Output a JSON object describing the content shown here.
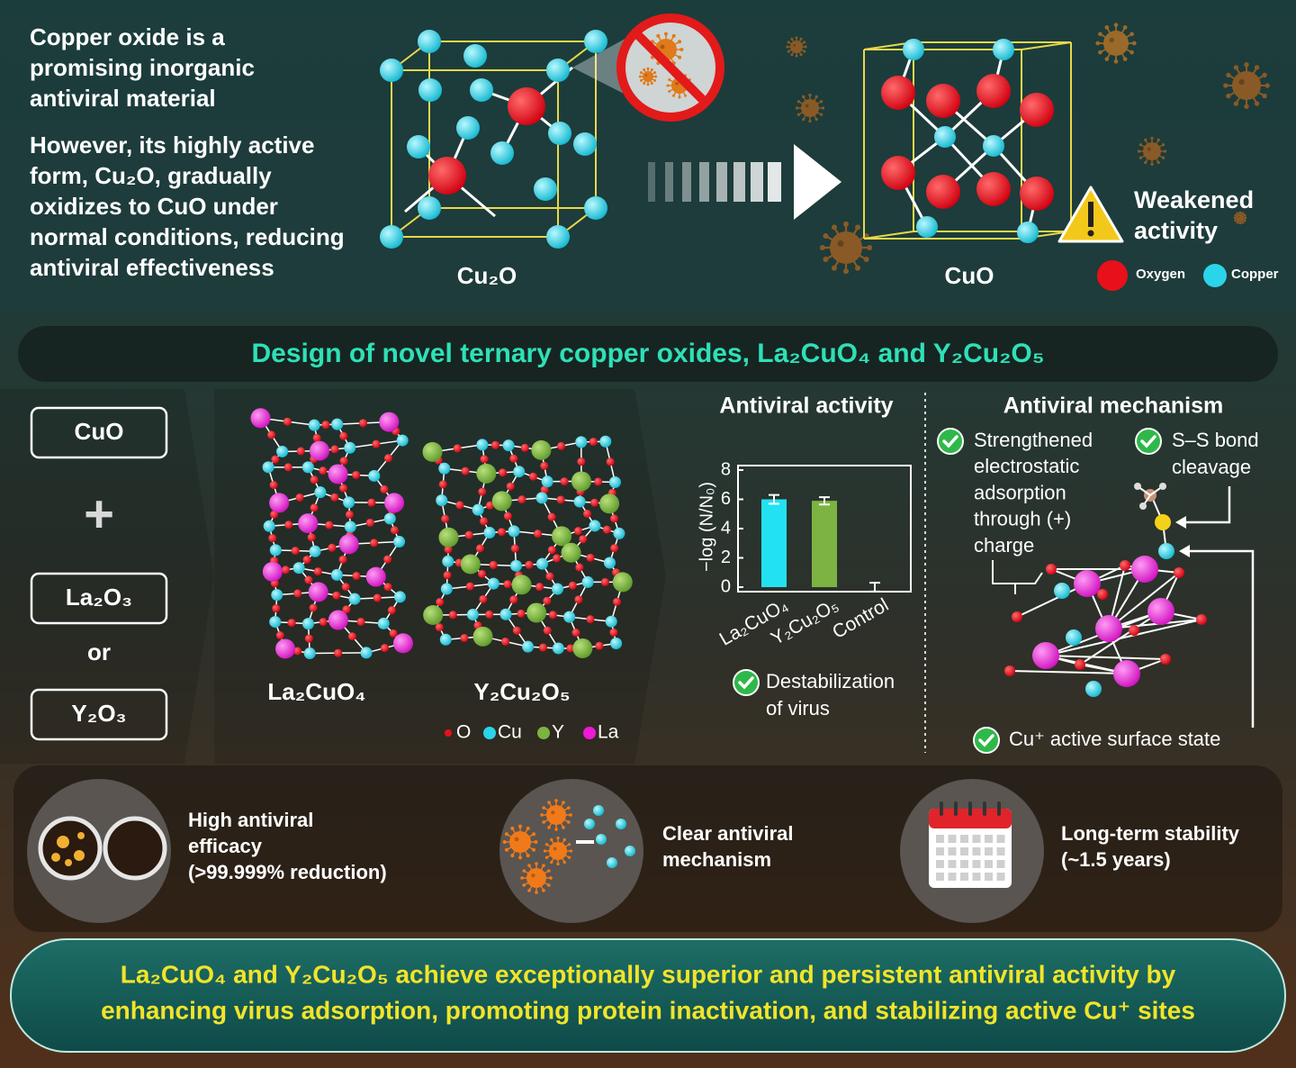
{
  "intro": {
    "heading": [
      "Copper oxide is a",
      "promising inorganic",
      "antiviral material"
    ],
    "body": [
      "However, its highly active",
      "form, Cu₂O, gradually",
      "oxidizes to CuO under",
      "normal conditions, reducing",
      "antiviral effectiveness"
    ]
  },
  "oxidation": {
    "from_label": "Cu₂O",
    "to_label": "CuO",
    "warning": [
      "Weakened",
      "activity"
    ],
    "legend": [
      {
        "label": "Oxygen",
        "color": "#e8101a"
      },
      {
        "label": "Copper",
        "color": "#2ad4ea"
      }
    ]
  },
  "banner": "Design of novel ternary copper oxides, La₂CuO₄ and Y₂Cu₂O₅",
  "reactants": {
    "base": "CuO",
    "plus": "+",
    "option_a": "La₂O₃",
    "or": "or",
    "option_b": "Y₂O₃"
  },
  "structures": {
    "labels": [
      "La₂CuO₄",
      "Y₂Cu₂O₅"
    ],
    "legend": [
      {
        "label": "O",
        "color": "#e8101a"
      },
      {
        "label": "Cu",
        "color": "#2ad4ea"
      },
      {
        "label": "Y",
        "color": "#7cb342"
      },
      {
        "label": "La",
        "color": "#ee18d8"
      }
    ]
  },
  "chart_data": {
    "type": "bar",
    "title": "Antiviral activity",
    "y_label": "−log (N/N₀)",
    "categories": [
      "La₂CuO₄",
      "Y₂Cu₂O₅",
      "Control"
    ],
    "values": [
      6.0,
      5.9,
      0
    ],
    "errors": [
      0.3,
      0.25,
      0.3
    ],
    "colors": [
      "#22e2f2",
      "#7cb342",
      "#22e2f2"
    ],
    "ylim": [
      0,
      8
    ],
    "yticks": [
      0,
      2,
      4,
      6,
      8
    ],
    "note": [
      "Destabilization",
      "of virus"
    ]
  },
  "mechanism": {
    "title": "Antiviral mechanism",
    "adsorption": [
      "Strengthened",
      "electrostatic",
      "adsorption",
      "through (+)",
      "charge"
    ],
    "cleavage": [
      "S–S bond",
      "cleavage"
    ],
    "surface": "Cu⁺ active surface state"
  },
  "features": [
    [
      "High antiviral",
      "efficacy",
      "(>99.999% reduction)"
    ],
    [
      "Clear antiviral",
      "mechanism"
    ],
    [
      "Long-term stability",
      "(~1.5 years)"
    ]
  ],
  "conclusion": [
    "La₂CuO₄  and Y₂Cu₂O₅ achieve exceptionally superior and persistent antiviral activity by",
    "enhancing virus adsorption, promoting protein inactivation, and stabilizing active Cu⁺ sites"
  ]
}
